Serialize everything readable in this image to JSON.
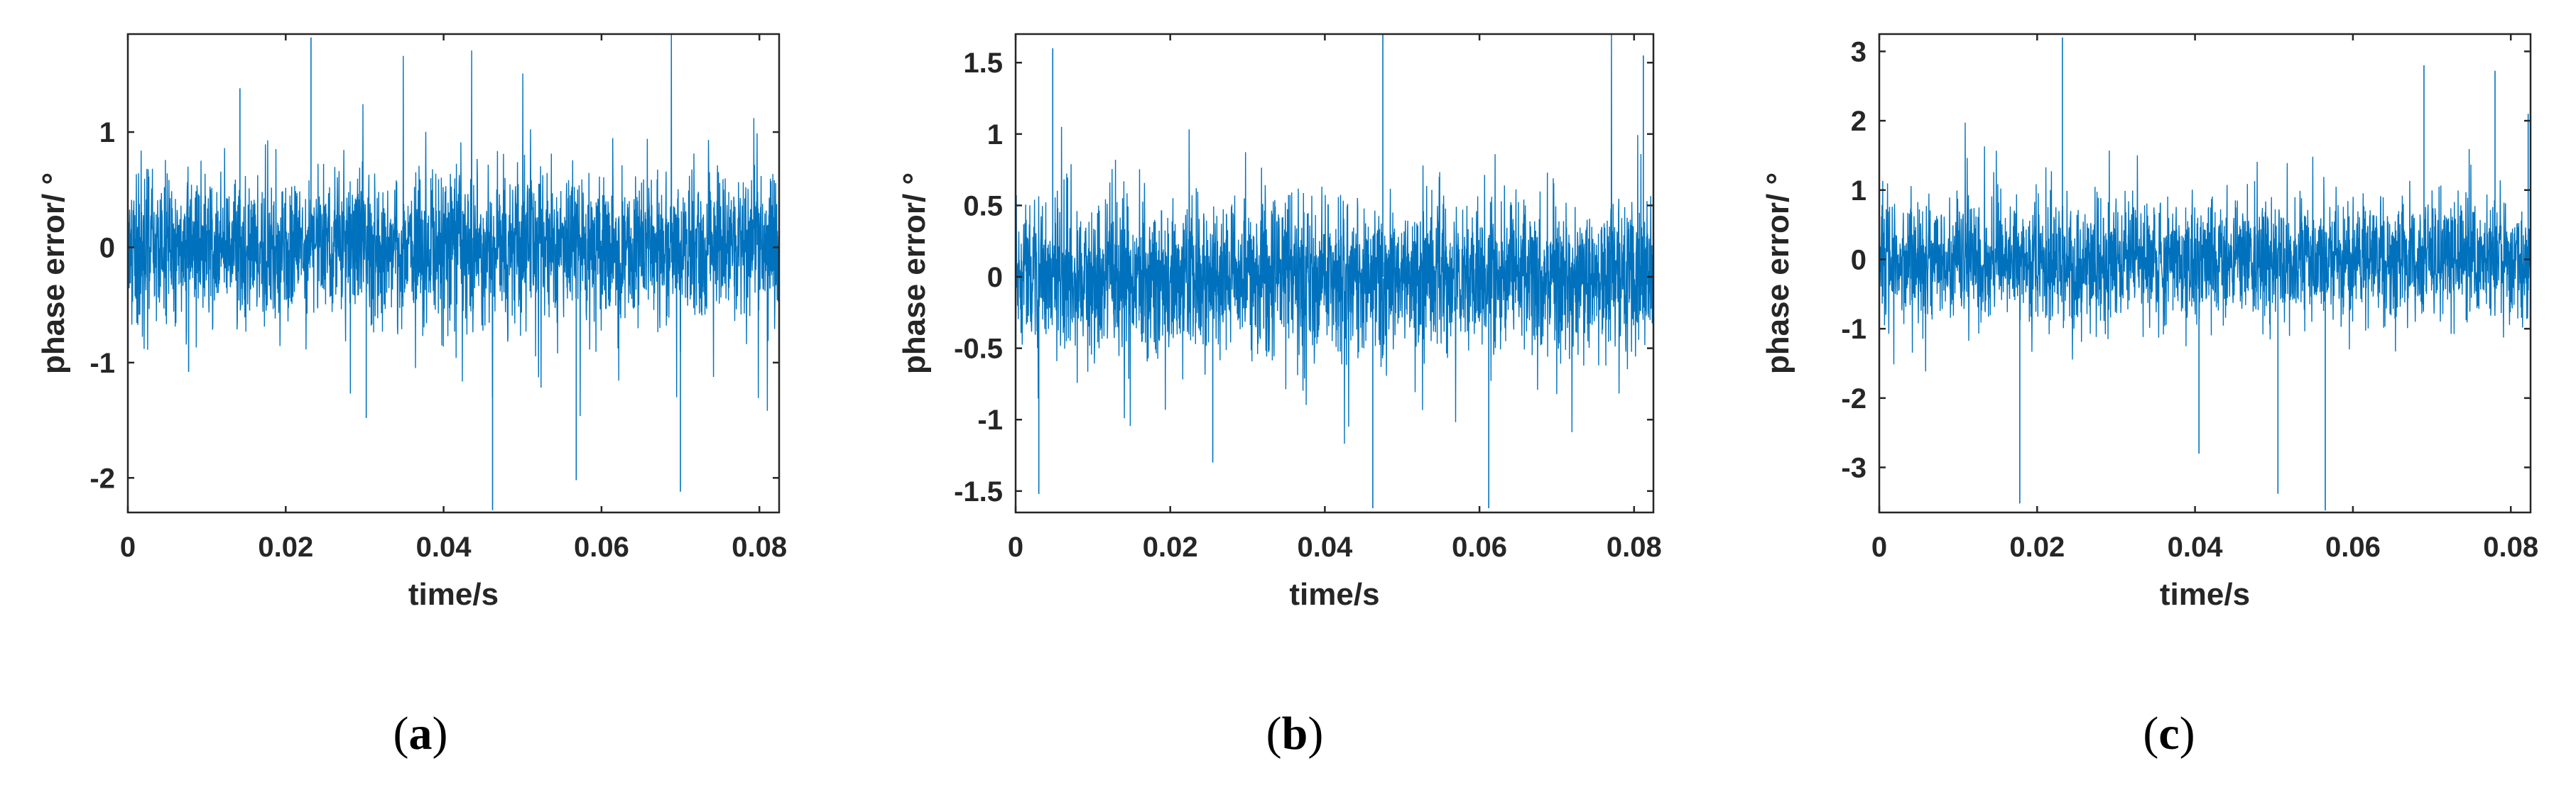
{
  "chart_data": [
    {
      "type": "line",
      "panel": "a",
      "xlabel": "time/s",
      "ylabel": "phase error/ °",
      "xlim": [
        0,
        0.0825
      ],
      "ylim": [
        -2.3,
        1.85
      ],
      "xticks": [
        "0",
        "0.02",
        "0.04",
        "0.06",
        "0.08"
      ],
      "yticks": [
        "-2",
        "-1",
        "0",
        "1"
      ],
      "series_color": "#0072BD",
      "noise_sigma": 0.32,
      "spikes": [
        {
          "x": 0.0232,
          "y": 1.82
        },
        {
          "x": 0.0462,
          "y": -2.28
        },
        {
          "x": 0.0568,
          "y": -2.02
        },
        {
          "x": 0.07,
          "y": -2.12
        },
        {
          "x": 0.0077,
          "y": -1.08
        },
        {
          "x": 0.0302,
          "y": -1.48
        },
        {
          "x": 0.0142,
          "y": 1.38
        }
      ]
    },
    {
      "type": "line",
      "panel": "b",
      "xlabel": "time/s",
      "ylabel": "phase error/ °",
      "xlim": [
        0,
        0.0825
      ],
      "ylim": [
        -1.65,
        1.7
      ],
      "xticks": [
        "0",
        "0.02",
        "0.04",
        "0.06",
        "0.08"
      ],
      "yticks": [
        "-1.5",
        "-1",
        "-0.5",
        "0",
        "0.5",
        "1",
        "1.5"
      ],
      "series_color": "#0072BD",
      "noise_sigma": 0.26,
      "spikes": [
        {
          "x": 0.0475,
          "y": 1.7
        },
        {
          "x": 0.003,
          "y": -1.52
        },
        {
          "x": 0.0462,
          "y": -1.62
        },
        {
          "x": 0.0612,
          "y": -1.62
        },
        {
          "x": 0.0048,
          "y": 1.6
        },
        {
          "x": 0.0812,
          "y": 1.55
        },
        {
          "x": 0.0255,
          "y": -1.3
        }
      ]
    },
    {
      "type": "line",
      "panel": "c",
      "xlabel": "time/s",
      "ylabel": "phase error/ °",
      "xlim": [
        0,
        0.0825
      ],
      "ylim": [
        -3.65,
        3.25
      ],
      "xticks": [
        "0",
        "0.02",
        "0.04",
        "0.06",
        "0.08"
      ],
      "yticks": [
        "-3",
        "-2",
        "-1",
        "0",
        "1",
        "2",
        "3"
      ],
      "series_color": "#0072BD",
      "noise_sigma": 0.42,
      "spikes": [
        {
          "x": 0.0232,
          "y": 3.2
        },
        {
          "x": 0.0178,
          "y": -3.52
        },
        {
          "x": 0.0565,
          "y": -3.62
        },
        {
          "x": 0.0505,
          "y": -3.38
        },
        {
          "x": 0.069,
          "y": 2.8
        },
        {
          "x": 0.078,
          "y": 2.72
        },
        {
          "x": 0.0822,
          "y": 2.1
        },
        {
          "x": 0.0405,
          "y": -2.8
        }
      ]
    }
  ],
  "captions": [
    {
      "open": "(",
      "letter": "a",
      "close": ")"
    },
    {
      "open": "(",
      "letter": "b",
      "close": ")"
    },
    {
      "open": "(",
      "letter": "c",
      "close": ")"
    }
  ]
}
